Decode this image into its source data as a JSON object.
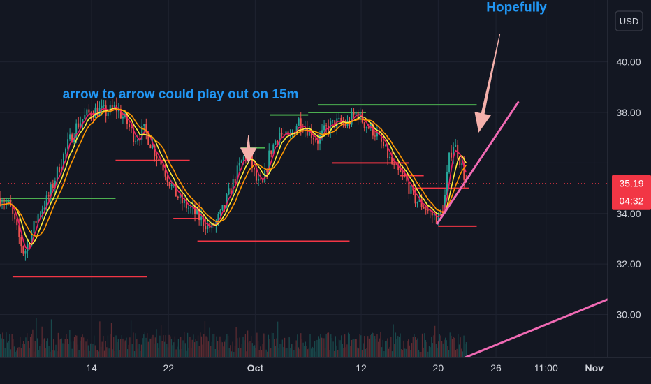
{
  "chart_data": {
    "type": "candlestick",
    "currency_label": "USD",
    "y_ticks": [
      "40.00",
      "38.00",
      "36.00",
      "34.00",
      "32.00",
      "30.00"
    ],
    "y_tick_values": [
      40,
      38,
      36,
      34,
      32,
      30
    ],
    "ylim": [
      28.3,
      42.45
    ],
    "x_ticks": [
      {
        "label": "14",
        "x": 14,
        "bold": false
      },
      {
        "label": "22",
        "x": 22,
        "bold": false
      },
      {
        "label": "Oct",
        "x": 31,
        "bold": true
      },
      {
        "label": "12",
        "x": 42,
        "bold": false
      },
      {
        "label": "20",
        "x": 50,
        "bold": false
      },
      {
        "label": "26",
        "x": 56,
        "bold": false
      },
      {
        "label": "11:00",
        "x": 61.2,
        "bold": false
      },
      {
        "label": "Nov",
        "x": 66.2,
        "bold": true
      }
    ],
    "xlim": [
      4.5,
      67.6
    ],
    "last_price": "35.19",
    "last_price_value": 35.19,
    "countdown": "04:32",
    "price_path": [
      [
        4.5,
        34.6
      ],
      [
        5.5,
        34.3
      ],
      [
        6.5,
        33.0
      ],
      [
        7.0,
        32.4
      ],
      [
        7.6,
        33.0
      ],
      [
        8.5,
        34.0
      ],
      [
        9.5,
        34.6
      ],
      [
        10.5,
        35.7
      ],
      [
        11.5,
        36.7
      ],
      [
        12.5,
        37.5
      ],
      [
        13.5,
        37.9
      ],
      [
        14.5,
        38.1
      ],
      [
        15.5,
        38.0
      ],
      [
        16.5,
        38.2
      ],
      [
        17.5,
        37.7
      ],
      [
        18.5,
        37.0
      ],
      [
        19.5,
        37.3
      ],
      [
        20.5,
        36.5
      ],
      [
        21.5,
        35.8
      ],
      [
        22.5,
        34.9
      ],
      [
        23.5,
        34.4
      ],
      [
        24.5,
        34.1
      ],
      [
        25.5,
        33.7
      ],
      [
        26.5,
        33.4
      ],
      [
        27.5,
        34.0
      ],
      [
        28.5,
        35.0
      ],
      [
        29.5,
        36.0
      ],
      [
        30.0,
        36.3
      ],
      [
        30.5,
        36.1
      ],
      [
        31.2,
        35.2
      ],
      [
        31.8,
        35.1
      ],
      [
        32.5,
        36.4
      ],
      [
        33.5,
        37.2
      ],
      [
        34.5,
        36.9
      ],
      [
        35.5,
        37.7
      ],
      [
        36.5,
        37.3
      ],
      [
        37.5,
        36.9
      ],
      [
        38.5,
        37.4
      ],
      [
        39.5,
        37.6
      ],
      [
        40.5,
        37.5
      ],
      [
        41.5,
        38.0
      ],
      [
        42.5,
        37.5
      ],
      [
        43.5,
        37.2
      ],
      [
        44.5,
        36.5
      ],
      [
        45.5,
        35.7
      ],
      [
        46.5,
        35.4
      ],
      [
        47.5,
        34.6
      ],
      [
        48.5,
        34.3
      ],
      [
        49.5,
        33.9
      ],
      [
        50.0,
        33.8
      ],
      [
        50.6,
        34.3
      ],
      [
        51.1,
        36.1
      ],
      [
        51.6,
        36.8
      ],
      [
        52.2,
        36.2
      ],
      [
        52.9,
        35.2
      ]
    ],
    "horizontal_levels": [
      {
        "color": "#4caf50",
        "y": 34.6,
        "x1": 4.5,
        "x2": 16.5
      },
      {
        "color": "#4caf50",
        "y": 34.5,
        "x1": 4.5,
        "x2": 5.7
      },
      {
        "color": "#f23645",
        "y": 31.5,
        "x1": 5.8,
        "x2": 19.8
      },
      {
        "color": "#f23645",
        "y": 36.1,
        "x1": 16.5,
        "x2": 24.2
      },
      {
        "color": "#f23645",
        "y": 33.8,
        "x1": 22.5,
        "x2": 25.5
      },
      {
        "color": "#f23645",
        "y": 32.9,
        "x1": 25.0,
        "x2": 40.8
      },
      {
        "color": "#4caf50",
        "y": 36.6,
        "x1": 29.5,
        "x2": 32.0
      },
      {
        "color": "#4caf50",
        "y": 37.9,
        "x1": 32.5,
        "x2": 36.5
      },
      {
        "color": "#4caf50",
        "y": 38.0,
        "x1": 36.5,
        "x2": 42.5
      },
      {
        "color": "#4caf50",
        "y": 38.3,
        "x1": 37.5,
        "x2": 54.0
      },
      {
        "color": "#f23645",
        "y": 36.0,
        "x1": 39.0,
        "x2": 47.0
      },
      {
        "color": "#f23645",
        "y": 35.5,
        "x1": 46.0,
        "x2": 48.5
      },
      {
        "color": "#f23645",
        "y": 35.0,
        "x1": 47.5,
        "x2": 53.2
      },
      {
        "color": "#f23645",
        "y": 33.5,
        "x1": 50.0,
        "x2": 54.0
      }
    ],
    "trend_lines": [
      {
        "color": "#f06ab4",
        "from": [
          49.9,
          33.6
        ],
        "to": [
          58.3,
          38.4
        ]
      },
      {
        "color": "#f06ab4",
        "from": [
          52.8,
          28.3
        ],
        "to": [
          67.6,
          30.6
        ]
      }
    ],
    "arrows": [
      {
        "color": "#f4b0ab",
        "tail": [
          30.3,
          37.1
        ],
        "head": [
          30.3,
          36.0
        ]
      },
      {
        "color": "#f4b0ab",
        "tail": [
          56.4,
          41.1
        ],
        "head": [
          54.2,
          37.2
        ]
      }
    ],
    "annotations": [
      {
        "text": "arrow to arrow could play out on 15m",
        "x": 11.0,
        "y": 38.55
      },
      {
        "text": "Hopefully",
        "x": 55.0,
        "y": 42.0
      }
    ]
  }
}
